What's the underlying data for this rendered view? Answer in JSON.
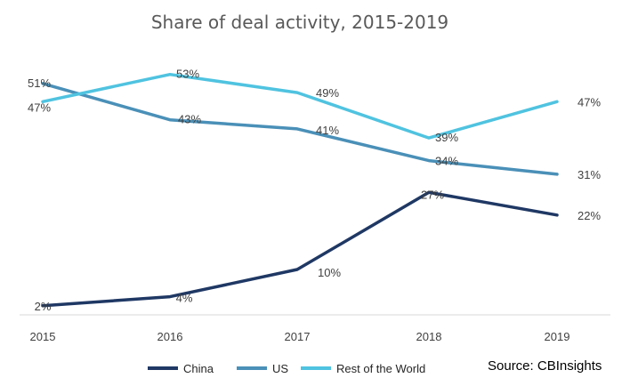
{
  "chart_data": {
    "type": "line",
    "title": "Share of deal activity, 2015-2019",
    "x": [
      "2015",
      "2016",
      "2017",
      "2018",
      "2019"
    ],
    "ylim": [
      0,
      60
    ],
    "ylabel": "",
    "xlabel": "",
    "grid": false,
    "legend": "bottom",
    "series": [
      {
        "name": "China",
        "color": "#1f3864",
        "values": [
          2,
          4,
          10,
          27,
          22
        ],
        "labels": [
          "2%",
          "4%",
          "10%",
          "27%",
          "22%"
        ]
      },
      {
        "name": "US",
        "color": "#4a90b8",
        "values": [
          51,
          43,
          41,
          34,
          31
        ],
        "labels": [
          "51%",
          "43%",
          "41%",
          "34%",
          "31%"
        ]
      },
      {
        "name": "Rest of the World",
        "color": "#4fc3e0",
        "values": [
          47,
          53,
          49,
          39,
          47
        ],
        "labels": [
          "47%",
          "53%",
          "49%",
          "39%",
          "47%"
        ]
      }
    ],
    "source": "Source: CBInsights"
  }
}
